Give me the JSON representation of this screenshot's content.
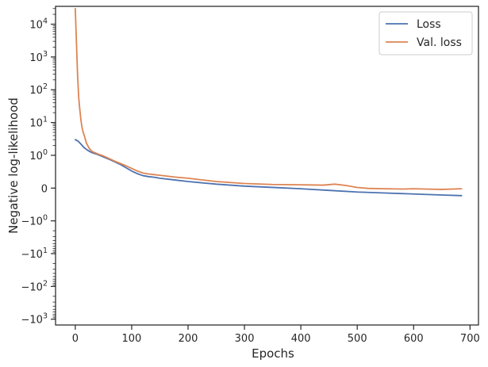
{
  "chart_data": {
    "type": "line",
    "xlabel": "Epochs",
    "ylabel": "Negative log-likelihood",
    "yscale": "symlog",
    "xlim": [
      -35,
      715
    ],
    "ylim": [
      -1500,
      35000
    ],
    "grid": false,
    "legend_position": "top-right",
    "x_ticks": [
      {
        "value": 0,
        "label": "0"
      },
      {
        "value": 100,
        "label": "100"
      },
      {
        "value": 200,
        "label": "200"
      },
      {
        "value": 300,
        "label": "300"
      },
      {
        "value": 400,
        "label": "400"
      },
      {
        "value": 500,
        "label": "500"
      },
      {
        "value": 600,
        "label": "600"
      },
      {
        "value": 700,
        "label": "700"
      }
    ],
    "y_ticks": [
      {
        "value": 10000,
        "base": "10",
        "exp": "4",
        "sign": ""
      },
      {
        "value": 1000,
        "base": "10",
        "exp": "3",
        "sign": ""
      },
      {
        "value": 100,
        "base": "10",
        "exp": "2",
        "sign": ""
      },
      {
        "value": 10,
        "base": "10",
        "exp": "1",
        "sign": ""
      },
      {
        "value": 1,
        "base": "10",
        "exp": "0",
        "sign": ""
      },
      {
        "value": 0,
        "base": "0",
        "exp": "",
        "sign": ""
      },
      {
        "value": -1,
        "base": "10",
        "exp": "0",
        "sign": "−"
      },
      {
        "value": -10,
        "base": "10",
        "exp": "1",
        "sign": "−"
      },
      {
        "value": -100,
        "base": "10",
        "exp": "2",
        "sign": "−"
      },
      {
        "value": -1000,
        "base": "10",
        "exp": "3",
        "sign": "−"
      }
    ],
    "series": [
      {
        "name": "Loss",
        "color": "#4c72b0",
        "x": [
          0,
          5,
          10,
          15,
          20,
          25,
          30,
          40,
          50,
          60,
          70,
          80,
          90,
          100,
          110,
          120,
          130,
          140,
          150,
          175,
          200,
          250,
          300,
          350,
          400,
          450,
          500,
          550,
          600,
          650,
          685
        ],
        "y": [
          3.0,
          2.7,
          2.2,
          1.75,
          1.5,
          1.32,
          1.2,
          1.05,
          0.95,
          0.88,
          0.8,
          0.72,
          0.62,
          0.52,
          0.44,
          0.38,
          0.35,
          0.33,
          0.3,
          0.25,
          0.2,
          0.12,
          0.06,
          0.02,
          -0.02,
          -0.07,
          -0.12,
          -0.15,
          -0.18,
          -0.21,
          -0.23
        ]
      },
      {
        "name": "Val. loss",
        "color": "#dd8452",
        "x": [
          0,
          2,
          4,
          6,
          8,
          10,
          12,
          14,
          16,
          18,
          20,
          25,
          30,
          40,
          50,
          60,
          70,
          80,
          90,
          100,
          110,
          120,
          130,
          140,
          150,
          175,
          200,
          250,
          300,
          350,
          400,
          440,
          460,
          480,
          500,
          520,
          550,
          580,
          600,
          620,
          650,
          685
        ],
        "y": [
          30000,
          3000,
          300,
          60,
          25,
          12,
          7,
          5,
          4,
          3,
          2.3,
          1.6,
          1.3,
          1.1,
          0.98,
          0.9,
          0.82,
          0.75,
          0.68,
          0.6,
          0.52,
          0.46,
          0.43,
          0.41,
          0.39,
          0.34,
          0.3,
          0.2,
          0.14,
          0.11,
          0.1,
          0.09,
          0.12,
          0.08,
          0.02,
          -0.01,
          -0.02,
          -0.03,
          -0.02,
          -0.03,
          -0.04,
          -0.02
        ]
      }
    ]
  }
}
